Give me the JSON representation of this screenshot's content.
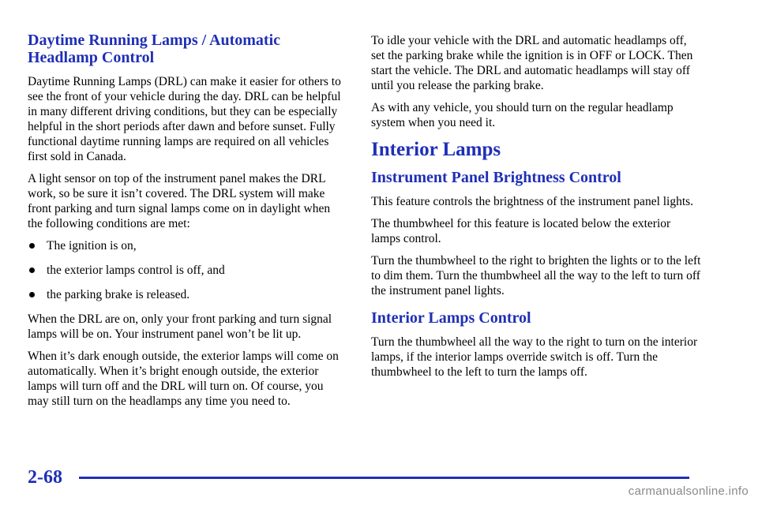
{
  "left": {
    "heading": "Daytime Running Lamps / Automatic Headlamp Control",
    "paragraphs": [
      "Daytime Running Lamps (DRL) can make it easier for others to see the front of your vehicle during the day. DRL can be helpful in many different driving conditions, but they can be especially helpful in the short periods after dawn and before sunset. Fully functional daytime running lamps are required on all vehicles first sold in Canada.",
      "A light sensor on top of the instrument panel makes the DRL work, so be sure it isn’t covered. The DRL system will make front parking and turn signal lamps come on in daylight when the following conditions are met:"
    ],
    "bullets": [
      "The ignition is on,",
      "the exterior lamps control is off, and",
      "the parking brake is released."
    ],
    "paragraphs_after": [
      "When the DRL are on, only your front parking and turn signal lamps will be on. Your instrument panel won’t be lit up.",
      "When it’s dark enough outside, the exterior lamps will come on automatically. When it’s bright enough outside, the exterior lamps will turn off and the DRL will turn on. Of course, you may still turn on the headlamps any time you need to."
    ]
  },
  "right": {
    "paragraphs": [
      "To idle your vehicle with the DRL and automatic headlamps off, set the parking brake while the ignition is in OFF or LOCK. Then start the vehicle. The DRL and automatic headlamps will stay off until you release the parking brake.",
      "As with any vehicle, you should turn on the regular headlamp system when you need it."
    ],
    "interior_heading": "Interior Lamps",
    "brightness_heading": "Instrument Panel Brightness Control",
    "brightness_paragraphs": [
      "This feature controls the brightness of the instrument panel lights.",
      "The thumbwheel for this feature is located below the exterior lamps control.",
      "Turn the thumbwheel to the right to brighten the lights or to the left to dim them. Turn the thumbwheel all the way to the left to turn off the instrument panel lights."
    ],
    "lamps_control_heading": "Interior Lamps Control",
    "lamps_control_paragraphs": [
      "Turn the thumbwheel all the way to the right to turn on the interior lamps, if the interior lamps override switch is off. Turn the thumbwheel to the left to turn the lamps off."
    ]
  },
  "footer": {
    "page_number": "2-68",
    "watermark": "carmanualsonline.info"
  },
  "colors": {
    "heading": "#1f2fb6",
    "rule": "#1f2fb6"
  }
}
